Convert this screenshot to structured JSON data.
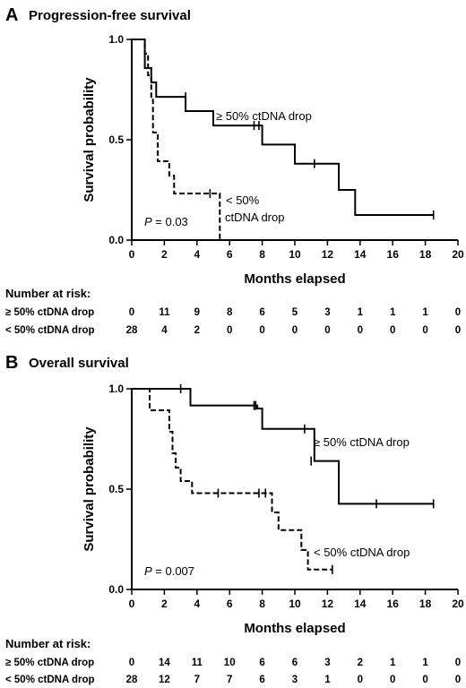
{
  "chart_data": [
    {
      "type": "line",
      "panel_letter": "A",
      "title": "Progression-free survival",
      "xlabel": "Months elapsed",
      "ylabel": "Survival probability",
      "xlim": [
        0,
        20
      ],
      "ylim": [
        0,
        1.0
      ],
      "x_ticks": [
        "0",
        "2",
        "4",
        "6",
        "8",
        "10",
        "12",
        "14",
        "16",
        "18",
        "20"
      ],
      "y_ticks": [
        "0.0",
        "0.5",
        "1.0"
      ],
      "series": [
        {
          "name": "≥ 50% ctDNA drop",
          "style": "solid",
          "steps": [
            [
              0,
              1.0
            ],
            [
              0.8,
              1.0
            ],
            [
              0.8,
              0.857
            ],
            [
              1.2,
              0.857
            ],
            [
              1.2,
              0.786
            ],
            [
              1.5,
              0.786
            ],
            [
              1.5,
              0.714
            ],
            [
              3.3,
              0.714
            ],
            [
              3.3,
              0.643
            ],
            [
              5.0,
              0.643
            ],
            [
              5.0,
              0.571
            ],
            [
              8.0,
              0.571
            ],
            [
              8.0,
              0.476
            ],
            [
              10.0,
              0.476
            ],
            [
              10.0,
              0.381
            ],
            [
              12.7,
              0.381
            ],
            [
              12.7,
              0.25
            ],
            [
              13.7,
              0.25
            ],
            [
              13.7,
              0.125
            ],
            [
              18.5,
              0.125
            ]
          ],
          "censored": [
            [
              3.3,
              0.714
            ],
            [
              7.5,
              0.571
            ],
            [
              7.8,
              0.571
            ],
            [
              11.2,
              0.381
            ],
            [
              18.5,
              0.125
            ]
          ]
        },
        {
          "name": "< 50% ctDNA drop",
          "style": "dashed",
          "steps": [
            [
              0,
              1.0
            ],
            [
              0.8,
              1.0
            ],
            [
              0.8,
              0.929
            ],
            [
              1.0,
              0.929
            ],
            [
              1.0,
              0.821
            ],
            [
              1.2,
              0.821
            ],
            [
              1.2,
              0.714
            ],
            [
              1.3,
              0.714
            ],
            [
              1.3,
              0.536
            ],
            [
              1.6,
              0.536
            ],
            [
              1.6,
              0.393
            ],
            [
              2.3,
              0.393
            ],
            [
              2.3,
              0.321
            ],
            [
              2.6,
              0.321
            ],
            [
              2.6,
              0.232
            ],
            [
              5.4,
              0.232
            ],
            [
              5.4,
              0.0
            ]
          ],
          "censored": [
            [
              4.8,
              0.232
            ]
          ]
        }
      ],
      "annotations": {
        "upper_label": "≥ 50% ctDNA drop",
        "lower_label_line1": "< 50%",
        "lower_label_line2": "ctDNA drop",
        "p_prefix": "P",
        "p_value": " = 0.03"
      },
      "risk_table": {
        "heading": "Number at risk:",
        "rows": [
          {
            "label": "≥ 50% ctDNA drop",
            "values": [
              "0",
              "11",
              "9",
              "8",
              "6",
              "5",
              "3",
              "1",
              "1",
              "1",
              "0"
            ]
          },
          {
            "label": "< 50% ctDNA drop",
            "values": [
              "28",
              "4",
              "2",
              "0",
              "0",
              "0",
              "0",
              "0",
              "0",
              "0",
              "0"
            ]
          }
        ]
      }
    },
    {
      "type": "line",
      "panel_letter": "B",
      "title": "Overall survival",
      "xlabel": "Months elapsed",
      "ylabel": "Survival probability",
      "xlim": [
        0,
        20
      ],
      "ylim": [
        0,
        1.0
      ],
      "x_ticks": [
        "0",
        "2",
        "4",
        "6",
        "8",
        "10",
        "12",
        "14",
        "16",
        "18",
        "20"
      ],
      "y_ticks": [
        "0.0",
        "0.5",
        "1.0"
      ],
      "series": [
        {
          "name": "≥ 50% ctDNA drop",
          "style": "solid",
          "steps": [
            [
              0,
              1.0
            ],
            [
              3.6,
              1.0
            ],
            [
              3.6,
              0.917
            ],
            [
              7.7,
              0.917
            ],
            [
              7.7,
              0.902
            ],
            [
              8.0,
              0.902
            ],
            [
              8.0,
              0.8
            ],
            [
              11.2,
              0.8
            ],
            [
              11.2,
              0.64
            ],
            [
              12.7,
              0.64
            ],
            [
              12.7,
              0.427
            ],
            [
              18.5,
              0.427
            ]
          ],
          "censored": [
            [
              3.0,
              1.0
            ],
            [
              7.5,
              0.917
            ],
            [
              7.6,
              0.917
            ],
            [
              10.6,
              0.8
            ],
            [
              11.0,
              0.64
            ],
            [
              15.0,
              0.427
            ],
            [
              18.5,
              0.427
            ]
          ]
        },
        {
          "name": "< 50% ctDNA drop",
          "style": "dashed",
          "steps": [
            [
              0,
              1.0
            ],
            [
              1.1,
              1.0
            ],
            [
              1.1,
              0.893
            ],
            [
              2.3,
              0.893
            ],
            [
              2.3,
              0.786
            ],
            [
              2.5,
              0.786
            ],
            [
              2.5,
              0.679
            ],
            [
              2.7,
              0.679
            ],
            [
              2.7,
              0.607
            ],
            [
              3.0,
              0.607
            ],
            [
              3.0,
              0.54
            ],
            [
              3.7,
              0.54
            ],
            [
              3.7,
              0.48
            ],
            [
              8.6,
              0.48
            ],
            [
              8.6,
              0.384
            ],
            [
              9.0,
              0.384
            ],
            [
              9.0,
              0.296
            ],
            [
              10.4,
              0.296
            ],
            [
              10.4,
              0.197
            ],
            [
              10.8,
              0.197
            ],
            [
              10.8,
              0.099
            ],
            [
              12.3,
              0.099
            ]
          ],
          "censored": [
            [
              5.3,
              0.48
            ],
            [
              7.8,
              0.48
            ],
            [
              8.2,
              0.48
            ],
            [
              12.3,
              0.099
            ]
          ]
        }
      ],
      "annotations": {
        "upper_label": "≥ 50% ctDNA drop",
        "lower_label": "< 50% ctDNA drop",
        "p_prefix": "P",
        "p_value": " = 0.007"
      },
      "risk_table": {
        "heading": "Number at risk:",
        "rows": [
          {
            "label": "≥ 50% ctDNA drop",
            "values": [
              "0",
              "14",
              "11",
              "10",
              "6",
              "6",
              "3",
              "2",
              "1",
              "1",
              "0"
            ]
          },
          {
            "label": "< 50% ctDNA drop",
            "values": [
              "28",
              "12",
              "7",
              "7",
              "6",
              "3",
              "1",
              "0",
              "0",
              "0",
              "0"
            ]
          }
        ]
      }
    }
  ]
}
